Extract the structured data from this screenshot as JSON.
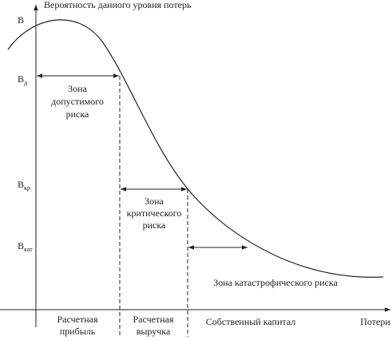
{
  "y_axis": {
    "label": "Вероятность данного уровня потерь",
    "levels": [
      {
        "symbol": "В"
      },
      {
        "symbol": "В",
        "subscript": "д"
      },
      {
        "symbol": "В",
        "subscript": "кр"
      },
      {
        "symbol": "В",
        "subscript": "кат"
      }
    ]
  },
  "zones": [
    {
      "lines": [
        "Зона",
        "допустимого",
        "риска"
      ]
    },
    {
      "lines": [
        "Зона",
        "критического",
        "риска"
      ]
    },
    {
      "lines": [
        "Зона катастрофического риска"
      ]
    }
  ],
  "x_axis": {
    "label": "Потери",
    "points": [
      {
        "lines": [
          "Расчетная",
          "прибыль"
        ]
      },
      {
        "lines": [
          "Расчетная",
          "выручка"
        ]
      },
      {
        "lines": [
          "Собственный капитал"
        ]
      }
    ]
  }
}
